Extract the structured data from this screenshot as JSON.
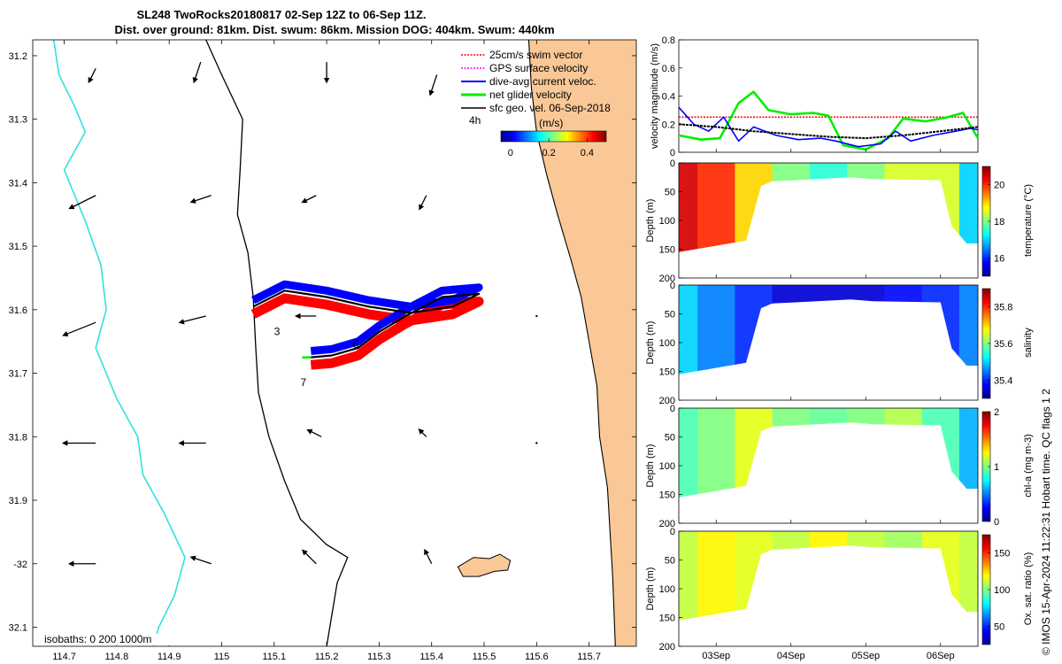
{
  "title_line1": "SL248 TwoRocks20180817 02-Sep 12Z to 06-Sep 11Z.",
  "title_line2": "Dist. over ground: 81km. Dist. swum: 86km. Mission DOG: 404km. Swum: 440km",
  "colors": {
    "land": "#f9c896",
    "coast": "#000000",
    "isobath_200": "#000000",
    "isobath_1000": "#33e0e0",
    "swim": "#ff0000",
    "gps": "#ff00ff",
    "dac": "#0000ff",
    "net": "#00ee00",
    "geo": "#000000",
    "track": "#000000"
  },
  "legend": {
    "swim": "25cm/s swim vector",
    "gps": "GPS surface velocity",
    "dac": "dive-avg current veloc.",
    "net": "net glider velocity",
    "geo": "sfc geo. vel. 06-Sep-2018",
    "interval": "4h",
    "colorbar_title": "(m/s)",
    "colorbar_ticks": [
      "0",
      "0.2",
      "0.4"
    ],
    "colorbar_values": [
      0,
      0.2,
      0.4
    ],
    "colorbar_range": [
      -0.05,
      0.5
    ]
  },
  "isobath_label": "isobaths: 0   200  1000m",
  "day_markers": [
    {
      "label": "3",
      "lon": 115.1,
      "lat": -31.64
    },
    {
      "label": "6",
      "lon": 115.25,
      "lat": -31.66
    },
    {
      "label": "7",
      "lon": 115.15,
      "lat": -31.72
    }
  ],
  "chart_data": [
    {
      "type": "vector-map",
      "xlim": [
        114.64,
        115.79
      ],
      "ylim": [
        -32.13,
        -31.175
      ],
      "x_ticks": [
        114.7,
        114.8,
        114.9,
        115.0,
        115.1,
        115.2,
        115.3,
        115.4,
        115.5,
        115.6,
        115.7
      ],
      "x_tick_labels": [
        "114.7",
        "114.8",
        "114.9",
        "115",
        "115.1",
        "115.2",
        "115.3",
        "115.4",
        "115.5",
        "115.6",
        "115.7"
      ],
      "y_ticks": [
        -31.2,
        -31.3,
        -31.4,
        -31.5,
        -31.6,
        -31.7,
        -31.8,
        -31.9,
        -32.0,
        -32.1
      ],
      "y_tick_labels": [
        "31.2",
        "31.3",
        "31.4",
        "31.5",
        "31.6",
        "31.7",
        "31.8",
        "31.9",
        "-32",
        "32.1"
      ],
      "coastline": [
        [
          115.585,
          -31.175
        ],
        [
          115.59,
          -31.25
        ],
        [
          115.6,
          -31.32
        ],
        [
          115.62,
          -31.39
        ],
        [
          115.64,
          -31.45
        ],
        [
          115.665,
          -31.52
        ],
        [
          115.685,
          -31.58
        ],
        [
          115.7,
          -31.65
        ],
        [
          115.715,
          -31.72
        ],
        [
          115.72,
          -31.8
        ],
        [
          115.735,
          -31.88
        ],
        [
          115.74,
          -31.95
        ],
        [
          115.745,
          -32.02
        ],
        [
          115.75,
          -32.13
        ]
      ],
      "rottnest_island": [
        [
          115.45,
          -32.005
        ],
        [
          115.48,
          -31.99
        ],
        [
          115.51,
          -31.992
        ],
        [
          115.53,
          -31.985
        ],
        [
          115.55,
          -31.995
        ],
        [
          115.545,
          -32.01
        ],
        [
          115.52,
          -32.012
        ],
        [
          115.49,
          -32.02
        ],
        [
          115.46,
          -32.02
        ]
      ],
      "isobath_200": [
        [
          114.97,
          -31.175
        ],
        [
          115.0,
          -31.23
        ],
        [
          115.04,
          -31.3
        ],
        [
          115.035,
          -31.38
        ],
        [
          115.03,
          -31.45
        ],
        [
          115.05,
          -31.51
        ],
        [
          115.06,
          -31.58
        ],
        [
          115.065,
          -31.66
        ],
        [
          115.07,
          -31.73
        ],
        [
          115.09,
          -31.8
        ],
        [
          115.12,
          -31.87
        ],
        [
          115.15,
          -31.93
        ],
        [
          115.2,
          -31.97
        ],
        [
          115.24,
          -31.99
        ],
        [
          115.22,
          -32.03
        ],
        [
          115.2,
          -32.13
        ]
      ],
      "isobath_1000": [
        [
          114.68,
          -31.175
        ],
        [
          114.69,
          -31.23
        ],
        [
          114.72,
          -31.28
        ],
        [
          114.74,
          -31.32
        ],
        [
          114.7,
          -31.38
        ],
        [
          114.74,
          -31.46
        ],
        [
          114.77,
          -31.53
        ],
        [
          114.78,
          -31.6
        ],
        [
          114.76,
          -31.66
        ],
        [
          114.8,
          -31.74
        ],
        [
          114.84,
          -31.8
        ],
        [
          114.85,
          -31.86
        ],
        [
          114.89,
          -31.92
        ],
        [
          114.93,
          -31.99
        ],
        [
          114.91,
          -32.05
        ],
        [
          114.88,
          -32.1
        ],
        [
          114.87,
          -32.13
        ]
      ],
      "glider_track": [
        [
          115.06,
          -31.595
        ],
        [
          115.12,
          -31.57
        ],
        [
          115.2,
          -31.58
        ],
        [
          115.28,
          -31.595
        ],
        [
          115.36,
          -31.605
        ],
        [
          115.44,
          -31.595
        ],
        [
          115.49,
          -31.575
        ],
        [
          115.42,
          -31.58
        ],
        [
          115.35,
          -31.61
        ],
        [
          115.3,
          -31.635
        ],
        [
          115.26,
          -31.66
        ],
        [
          115.21,
          -31.672
        ],
        [
          115.17,
          -31.675
        ]
      ],
      "geostrophic_vectors": [
        {
          "lon": 114.76,
          "lat": -31.22,
          "u": -0.01,
          "v": -0.02
        },
        {
          "lon": 114.96,
          "lat": -31.21,
          "u": -0.01,
          "v": -0.03
        },
        {
          "lon": 115.2,
          "lat": -31.21,
          "u": 0.0,
          "v": -0.03
        },
        {
          "lon": 115.41,
          "lat": -31.23,
          "u": -0.01,
          "v": -0.03
        },
        {
          "lon": 114.76,
          "lat": -31.42,
          "u": -0.04,
          "v": -0.02
        },
        {
          "lon": 114.98,
          "lat": -31.42,
          "u": -0.03,
          "v": -0.01
        },
        {
          "lon": 115.18,
          "lat": -31.42,
          "u": -0.02,
          "v": -0.01
        },
        {
          "lon": 115.39,
          "lat": -31.42,
          "u": -0.01,
          "v": -0.02
        },
        {
          "lon": 114.76,
          "lat": -31.62,
          "u": -0.05,
          "v": -0.02
        },
        {
          "lon": 114.97,
          "lat": -31.61,
          "u": -0.04,
          "v": -0.01
        },
        {
          "lon": 115.18,
          "lat": -31.61,
          "u": -0.03,
          "v": 0.0
        },
        {
          "lon": 115.6,
          "lat": -31.61,
          "u": 0.0,
          "v": 0.0
        },
        {
          "lon": 114.76,
          "lat": -31.81,
          "u": -0.05,
          "v": 0.0
        },
        {
          "lon": 114.97,
          "lat": -31.81,
          "u": -0.04,
          "v": 0.0
        },
        {
          "lon": 115.19,
          "lat": -31.8,
          "u": -0.02,
          "v": 0.01
        },
        {
          "lon": 115.39,
          "lat": -31.8,
          "u": -0.01,
          "v": 0.01
        },
        {
          "lon": 115.6,
          "lat": -31.81,
          "u": 0.0,
          "v": 0.0
        },
        {
          "lon": 114.76,
          "lat": -32.0,
          "u": -0.04,
          "v": 0.0
        },
        {
          "lon": 114.98,
          "lat": -32.0,
          "u": -0.03,
          "v": 0.01
        },
        {
          "lon": 115.18,
          "lat": -32.0,
          "u": -0.02,
          "v": 0.02
        },
        {
          "lon": 115.4,
          "lat": -32.0,
          "u": -0.01,
          "v": 0.02
        }
      ]
    },
    {
      "type": "line",
      "ylabel": "velocity magnitude (m/s)",
      "ylim": [
        0,
        0.8
      ],
      "y_ticks": [
        0,
        0.2,
        0.4,
        0.6,
        0.8
      ],
      "y_tick_labels": [
        "0",
        "0.2",
        "0.4",
        "0.6",
        "0.8"
      ],
      "x_unit": "days since 02-Sep 12Z",
      "xlim": [
        0,
        4.0
      ],
      "x_ticks": [
        0.5,
        1.5,
        2.5,
        3.5
      ],
      "x_tick_labels": [
        "03Sep",
        "04Sep",
        "05Sep",
        "06Sep"
      ],
      "series": [
        {
          "name": "swim (constant 25cm/s)",
          "color": "#ff0000",
          "x": [
            0,
            4.0
          ],
          "values": [
            0.25,
            0.25
          ]
        },
        {
          "name": "net glider velocity",
          "color": "#00ee00",
          "x": [
            0,
            0.3,
            0.55,
            0.8,
            1.0,
            1.2,
            1.5,
            1.8,
            2.0,
            2.2,
            2.5,
            2.8,
            3.0,
            3.3,
            3.6,
            3.8,
            4.0
          ],
          "values": [
            0.12,
            0.09,
            0.1,
            0.35,
            0.43,
            0.3,
            0.27,
            0.28,
            0.26,
            0.05,
            0.02,
            0.1,
            0.24,
            0.22,
            0.25,
            0.28,
            0.1
          ]
        },
        {
          "name": "dive-avg current",
          "color": "#0000ff",
          "x": [
            0,
            0.2,
            0.4,
            0.6,
            0.8,
            1.0,
            1.3,
            1.6,
            1.9,
            2.1,
            2.4,
            2.7,
            2.9,
            3.1,
            3.4,
            3.7,
            3.9,
            4.0
          ],
          "values": [
            0.32,
            0.2,
            0.15,
            0.25,
            0.08,
            0.18,
            0.12,
            0.09,
            0.1,
            0.08,
            0.04,
            0.06,
            0.15,
            0.08,
            0.12,
            0.15,
            0.17,
            0.16
          ]
        },
        {
          "name": "sfc geostrophic",
          "color": "#000000",
          "x": [
            0,
            0.5,
            1.0,
            1.5,
            2.0,
            2.5,
            3.0,
            3.5,
            4.0
          ],
          "values": [
            0.2,
            0.18,
            0.15,
            0.13,
            0.11,
            0.1,
            0.12,
            0.15,
            0.18
          ]
        }
      ]
    },
    {
      "type": "heatmap",
      "variable": "temperature",
      "colorbar_label": "temperature (°C)",
      "clim": [
        15,
        21
      ],
      "colorbar_ticks": [
        16,
        18,
        20
      ],
      "ylabel": "Depth (m)",
      "ylim": [
        200,
        0
      ],
      "y_ticks": [
        0,
        50,
        100,
        150,
        200
      ],
      "y_tick_labels": [
        "0",
        "50",
        "100",
        "150",
        "200"
      ],
      "x_ticks": [
        0.5,
        1.5,
        2.5,
        3.5
      ],
      "x_tick_labels": [
        "03Sep",
        "04Sep",
        "05Sep",
        "06Sep"
      ],
      "bottom_profile": [
        [
          0,
          155
        ],
        [
          0.9,
          135
        ],
        [
          1.1,
          40
        ],
        [
          1.25,
          32
        ],
        [
          2.3,
          25
        ],
        [
          2.6,
          28
        ],
        [
          3.5,
          30
        ],
        [
          3.65,
          110
        ],
        [
          3.85,
          140
        ],
        [
          4.0,
          140
        ]
      ],
      "profile_x": [
        0,
        0.5,
        1.0,
        1.5,
        2.0,
        2.5,
        3.0,
        3.5,
        4.0
      ],
      "values": [
        20.5,
        20.0,
        19.0,
        18.0,
        17.5,
        18.0,
        18.5,
        18.5,
        17.0
      ]
    },
    {
      "type": "heatmap",
      "variable": "salinity",
      "colorbar_label": "salinity",
      "clim": [
        35.3,
        35.9
      ],
      "colorbar_ticks": [
        35.4,
        35.6,
        35.8
      ],
      "ylabel": "Depth (m)",
      "ylim": [
        200,
        0
      ],
      "y_ticks": [
        0,
        50,
        100,
        150,
        200
      ],
      "y_tick_labels": [
        "0",
        "50",
        "100",
        "150",
        "200"
      ],
      "x_ticks": [
        0.5,
        1.5,
        2.5,
        3.5
      ],
      "x_tick_labels": [
        "03Sep",
        "04Sep",
        "05Sep",
        "06Sep"
      ],
      "bottom_profile": [
        [
          0,
          155
        ],
        [
          0.9,
          135
        ],
        [
          1.1,
          40
        ],
        [
          1.25,
          32
        ],
        [
          2.3,
          25
        ],
        [
          2.6,
          28
        ],
        [
          3.5,
          30
        ],
        [
          3.65,
          110
        ],
        [
          3.85,
          140
        ],
        [
          4.0,
          140
        ]
      ],
      "profile_x": [
        0,
        0.5,
        1.0,
        1.5,
        2.0,
        2.5,
        3.0,
        3.5,
        4.0
      ],
      "values": [
        35.5,
        35.45,
        35.4,
        35.35,
        35.35,
        35.35,
        35.38,
        35.4,
        35.45
      ]
    },
    {
      "type": "heatmap",
      "variable": "chl-a",
      "colorbar_label": "chl-a (mg m-3)",
      "clim": [
        0,
        2
      ],
      "colorbar_ticks": [
        0,
        1,
        2
      ],
      "ylabel": "Depth (m)",
      "ylim": [
        200,
        0
      ],
      "y_ticks": [
        0,
        50,
        100,
        150,
        200
      ],
      "y_tick_labels": [
        "0",
        "50",
        "100",
        "150",
        "200"
      ],
      "x_ticks": [
        0.5,
        1.5,
        2.5,
        3.5
      ],
      "x_tick_labels": [
        "03Sep",
        "04Sep",
        "05Sep",
        "06Sep"
      ],
      "bottom_profile": [
        [
          0,
          155
        ],
        [
          0.9,
          135
        ],
        [
          1.1,
          40
        ],
        [
          1.25,
          32
        ],
        [
          2.3,
          25
        ],
        [
          2.6,
          28
        ],
        [
          3.5,
          30
        ],
        [
          3.65,
          110
        ],
        [
          3.85,
          140
        ],
        [
          4.0,
          140
        ]
      ],
      "profile_x": [
        0,
        0.5,
        1.0,
        1.5,
        2.0,
        2.5,
        3.0,
        3.5,
        4.0
      ],
      "values": [
        0.9,
        1.0,
        1.2,
        1.0,
        0.95,
        1.0,
        1.1,
        0.9,
        0.6
      ]
    },
    {
      "type": "heatmap",
      "variable": "oxygen saturation",
      "colorbar_label": "Ox. sat. ratio (%)",
      "clim": [
        25,
        175
      ],
      "colorbar_ticks": [
        50,
        100,
        150
      ],
      "ylabel": "Depth (m)",
      "ylim": [
        200,
        0
      ],
      "y_ticks": [
        0,
        50,
        100,
        150,
        200
      ],
      "y_tick_labels": [
        "0",
        "50",
        "100",
        "150",
        "200"
      ],
      "x_ticks": [
        0.5,
        1.5,
        2.5,
        3.5
      ],
      "x_tick_labels": [
        "03Sep",
        "04Sep",
        "05Sep",
        "06Sep"
      ],
      "bottom_profile": [
        [
          0,
          155
        ],
        [
          0.9,
          135
        ],
        [
          1.1,
          40
        ],
        [
          1.25,
          32
        ],
        [
          2.3,
          25
        ],
        [
          2.6,
          28
        ],
        [
          3.5,
          30
        ],
        [
          3.65,
          110
        ],
        [
          3.85,
          140
        ],
        [
          4.0,
          140
        ]
      ],
      "profile_x": [
        0,
        0.5,
        1.0,
        1.5,
        2.0,
        2.5,
        3.0,
        3.5,
        4.0
      ],
      "values": [
        110,
        120,
        115,
        110,
        120,
        110,
        105,
        115,
        110
      ]
    }
  ],
  "footer": "© IMOS 15-Apr-2024 11:22:31 Hobart time. QC flags 1  2"
}
